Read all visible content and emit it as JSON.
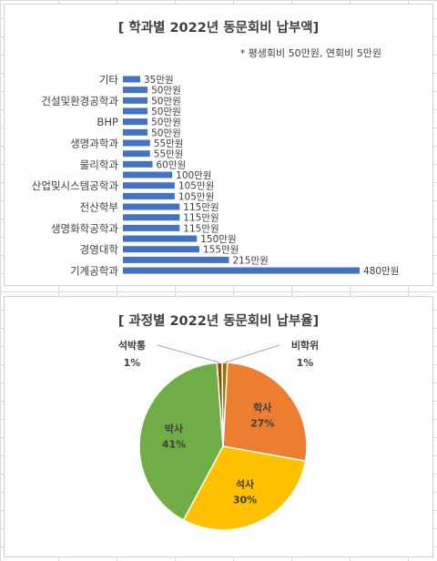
{
  "chart_data": [
    {
      "type": "bar",
      "orientation": "horizontal",
      "title": "[ 학과별 2022년 동문회비 납부액]",
      "note": "* 평생회비 50만원, 연회비 5만원",
      "categories": [
        "기타",
        "",
        "건설및환경공학과",
        "",
        "BHP",
        "",
        "생명과학과",
        "",
        "물리학과",
        "",
        "산업및시스템공학과",
        "",
        "전산학부",
        "",
        "생명화학공학과",
        "",
        "경영대학",
        "",
        "기계공학과"
      ],
      "values": [
        35,
        50,
        50,
        50,
        50,
        50,
        55,
        55,
        60,
        100,
        105,
        105,
        115,
        115,
        115,
        150,
        155,
        215,
        480
      ],
      "value_labels": [
        "35만원",
        "50만원",
        "50만원",
        "50만원",
        "50만원",
        "50만원",
        "55만원",
        "55만원",
        "60만원",
        "100만원",
        "105만원",
        "105만원",
        "115만원",
        "115만원",
        "115만원",
        "150만원",
        "155만원",
        "215만원",
        "480만원"
      ],
      "bar_color": "#4472c4",
      "xlim": [
        0,
        500
      ]
    },
    {
      "type": "pie",
      "title": "[ 과정별 2022년 동문회비 납부율]",
      "slices": [
        {
          "name": "학사",
          "value": 27,
          "label": "27%",
          "color": "#ed7d31"
        },
        {
          "name": "석사",
          "value": 30,
          "label": "30%",
          "color": "#ffc000"
        },
        {
          "name": "박사",
          "value": 41,
          "label": "41%",
          "color": "#70ad47"
        },
        {
          "name": "석박통",
          "value": 1,
          "label": "1%",
          "color": "#9e480e"
        },
        {
          "name": "비학위",
          "value": 1,
          "label": "1%",
          "color": "#997300"
        }
      ]
    }
  ]
}
